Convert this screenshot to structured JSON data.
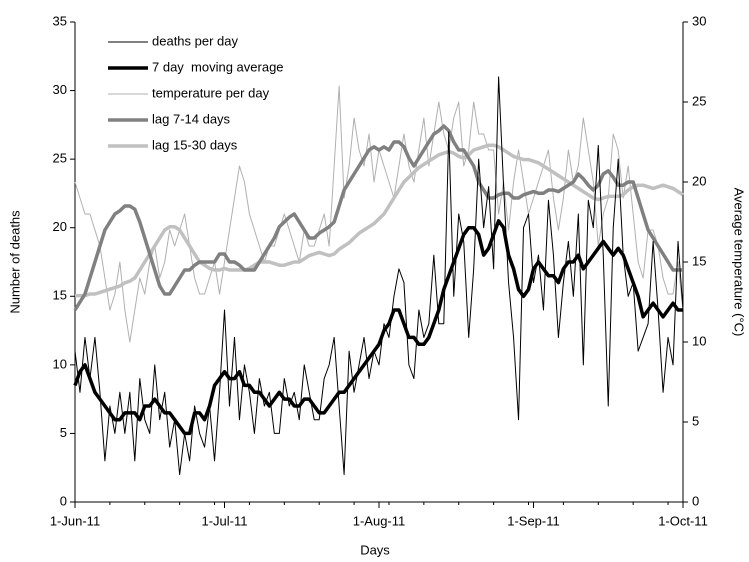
{
  "chart_data": {
    "type": "line",
    "x_label": "Days",
    "y_label": "Number of deaths",
    "y2_label": "Average temperature (°C)",
    "categories": [
      "1-Jun-11",
      null,
      null,
      null,
      null,
      null,
      null,
      null,
      null,
      null,
      null,
      null,
      null,
      null,
      null,
      null,
      null,
      null,
      null,
      null,
      null,
      null,
      null,
      null,
      null,
      null,
      null,
      null,
      null,
      null,
      "1-Jul-11",
      null,
      null,
      null,
      null,
      null,
      null,
      null,
      null,
      null,
      null,
      null,
      null,
      null,
      null,
      null,
      null,
      null,
      null,
      null,
      null,
      null,
      null,
      null,
      null,
      null,
      null,
      null,
      null,
      null,
      null,
      "1-Aug-11",
      null,
      null,
      null,
      null,
      null,
      null,
      null,
      null,
      null,
      null,
      null,
      null,
      null,
      null,
      null,
      null,
      null,
      null,
      null,
      null,
      null,
      null,
      null,
      null,
      null,
      null,
      null,
      null,
      null,
      null,
      "1-Sep-11",
      null,
      null,
      null,
      null,
      null,
      null,
      null,
      null,
      null,
      null,
      null,
      null,
      null,
      null,
      null,
      null,
      null,
      null,
      null,
      null,
      null,
      null,
      null,
      null,
      null,
      null,
      null,
      null,
      null,
      "1-Oct-11"
    ],
    "ylim": [
      0,
      35
    ],
    "yticks": [
      0,
      5,
      10,
      15,
      20,
      25,
      30,
      35
    ],
    "y2lim": [
      0,
      30
    ],
    "y2ticks": [
      0,
      5,
      10,
      15,
      20,
      25,
      30
    ],
    "grid": false,
    "legend": "top-left",
    "series": [
      {
        "name": "deaths per day",
        "color": "#000000",
        "width": 1,
        "values": [
          11,
          8,
          12,
          9,
          12,
          8,
          3,
          7,
          5,
          8,
          5,
          8,
          3,
          9,
          6,
          5,
          10,
          6,
          8,
          4,
          6,
          2,
          5,
          3,
          7,
          5,
          4,
          7,
          3,
          8,
          14,
          7,
          12,
          6,
          10,
          8,
          5,
          9,
          7,
          8,
          5,
          5,
          9,
          7,
          8,
          6,
          10,
          8,
          6,
          6,
          9,
          10,
          12,
          7,
          2,
          11,
          8,
          10,
          12,
          9,
          11,
          10,
          13,
          12,
          15,
          17,
          16,
          10,
          9,
          14,
          12,
          13,
          18,
          13,
          13,
          27,
          15,
          21,
          19,
          12,
          17,
          25,
          20,
          23,
          17,
          31,
          23,
          16,
          12,
          6,
          20,
          21,
          16,
          18,
          14,
          22,
          18,
          12,
          16,
          19,
          15,
          21,
          10,
          22,
          20,
          26,
          18,
          7,
          20,
          25,
          18,
          15,
          16,
          11,
          12,
          13,
          19,
          14,
          8,
          12,
          10,
          19,
          14
        ]
      },
      {
        "name": "7 day  moving average",
        "color": "#000000",
        "width": 3.5,
        "values": [
          8.5,
          9.5,
          10,
          9,
          8,
          7.5,
          7,
          6.5,
          6,
          6,
          6.5,
          6.5,
          6.5,
          6,
          7,
          7,
          7.5,
          7,
          6.5,
          6.5,
          6,
          5.5,
          5,
          5,
          6.5,
          6.5,
          6,
          7,
          8.5,
          9,
          9.5,
          9,
          9,
          9.5,
          8.5,
          8.5,
          8,
          8,
          7.5,
          7,
          7.5,
          8,
          7.5,
          7.5,
          7,
          7,
          7.5,
          7.5,
          7,
          6.5,
          6.5,
          7,
          7.5,
          8,
          8,
          8.5,
          9,
          9.5,
          10,
          10.5,
          11,
          11.5,
          12.5,
          13,
          14,
          14,
          13,
          12,
          12,
          11.5,
          11.5,
          12,
          13,
          14,
          15.5,
          16.5,
          17.5,
          18.5,
          19.5,
          20,
          20,
          19.5,
          18,
          18.5,
          19.5,
          20.5,
          20,
          18,
          17,
          15.5,
          15,
          15.5,
          17,
          17.5,
          17,
          16.5,
          16.5,
          16,
          17,
          17.5,
          17.5,
          18,
          17,
          17.5,
          18,
          18.5,
          19,
          18.5,
          18,
          18.5,
          18,
          17,
          16,
          15,
          13.5,
          14,
          14.5,
          14,
          13.5,
          14,
          14.5,
          14,
          14
        ]
      },
      {
        "name": "temperature per day",
        "color": "#b0b0b0",
        "width": 1,
        "axis": "y2",
        "values": [
          20,
          19,
          18,
          18,
          17,
          16,
          14,
          12,
          13,
          15,
          12,
          10,
          12,
          14,
          13,
          15,
          16,
          14,
          15,
          17,
          16,
          17,
          18,
          16,
          14,
          13,
          13,
          14,
          15,
          13,
          15,
          17,
          19,
          21,
          20,
          18,
          17,
          16,
          15,
          16,
          16,
          17,
          18,
          17,
          16,
          15,
          17,
          16,
          16,
          17,
          18,
          16,
          21,
          26,
          19,
          21,
          24,
          22,
          21,
          23,
          20,
          22,
          21,
          20,
          19,
          21,
          23,
          21,
          20,
          22,
          24,
          21,
          23,
          25,
          23,
          22,
          24,
          25,
          21,
          22,
          25,
          23,
          23,
          22,
          22,
          18,
          20,
          17,
          20,
          22,
          20,
          18,
          19,
          20,
          21,
          22,
          19,
          17,
          19,
          22,
          20,
          21,
          24,
          22,
          20,
          16,
          18,
          19,
          23,
          22,
          19,
          21,
          18,
          15,
          14,
          17,
          17,
          16,
          14,
          13,
          13,
          15,
          12
        ]
      },
      {
        "name": "lag 7-14 days",
        "color": "#808080",
        "width": 3.5,
        "axis": "y2",
        "values": [
          12,
          12.5,
          13,
          14,
          15,
          16,
          17,
          17.5,
          18,
          18.2,
          18.5,
          18.5,
          18.3,
          17.5,
          16.5,
          15.5,
          14.5,
          13.5,
          13,
          13,
          13.5,
          14,
          14.5,
          14.5,
          14.8,
          15,
          15,
          15,
          15,
          15.5,
          15.5,
          15,
          15,
          14.8,
          14.5,
          14.5,
          14.5,
          15,
          15.5,
          16,
          16.5,
          17.2,
          17.5,
          17.8,
          18,
          17.5,
          17,
          16.5,
          16.5,
          16.8,
          17,
          17.2,
          17.5,
          18.5,
          19.5,
          20,
          20.5,
          21,
          21.5,
          22,
          22.2,
          22,
          22.2,
          22,
          22.5,
          22.5,
          22.2,
          21.5,
          21,
          21.5,
          22,
          22.5,
          23,
          23.2,
          23.5,
          23.2,
          22.5,
          22,
          22,
          21.5,
          21,
          20,
          19.5,
          19,
          19,
          19.2,
          19.3,
          19.3,
          19,
          19,
          19.2,
          19.3,
          19.4,
          19.3,
          19.3,
          19.5,
          19.5,
          19.4,
          19.6,
          19.8,
          20,
          20.5,
          20.2,
          19.8,
          19.5,
          19.8,
          20.5,
          20.7,
          20.3,
          19.8,
          19.8,
          20,
          20,
          19,
          18,
          17,
          16.5,
          16,
          15.5,
          15,
          14.5,
          14.5,
          14.5
        ]
      },
      {
        "name": "lag 15-30 days",
        "color": "#c0c0c0",
        "width": 3.5,
        "axis": "y2",
        "values": [
          12.9,
          12.9,
          12.9,
          13,
          13,
          13.1,
          13.2,
          13.3,
          13.4,
          13.5,
          13.7,
          13.8,
          14,
          14.5,
          15,
          15.5,
          16,
          16.5,
          17,
          17.2,
          17.2,
          17,
          16.5,
          16,
          15.5,
          15,
          14.8,
          14.6,
          14.5,
          14.5,
          14.6,
          14.5,
          14.5,
          14.5,
          14.5,
          14.6,
          14.8,
          15,
          15,
          15,
          14.9,
          14.8,
          14.8,
          14.9,
          15,
          15,
          15.2,
          15.4,
          15.5,
          15.6,
          15.5,
          15.4,
          15.5,
          15.8,
          16,
          16.2,
          16.5,
          16.8,
          17,
          17.2,
          17.4,
          17.7,
          18,
          18.5,
          19,
          19.5,
          20,
          20.3,
          20.6,
          20.9,
          21.1,
          21.3,
          21.5,
          21.7,
          21.8,
          21.9,
          21.8,
          21.6,
          21.5,
          21.7,
          22,
          22.1,
          22.2,
          22.3,
          22.3,
          22.2,
          22,
          21.8,
          21.6,
          21.5,
          21.4,
          21.4,
          21.3,
          21.2,
          21,
          20.8,
          20.6,
          20.4,
          20.2,
          20,
          19.8,
          19.6,
          19.4,
          19.2,
          19,
          18.9,
          19,
          19.1,
          19.1,
          19.1,
          19.2,
          19.5,
          19.7,
          19.8,
          19.8,
          19.7,
          19.6,
          19.7,
          19.8,
          19.7,
          19.6,
          19.4,
          19.2
        ]
      }
    ]
  }
}
